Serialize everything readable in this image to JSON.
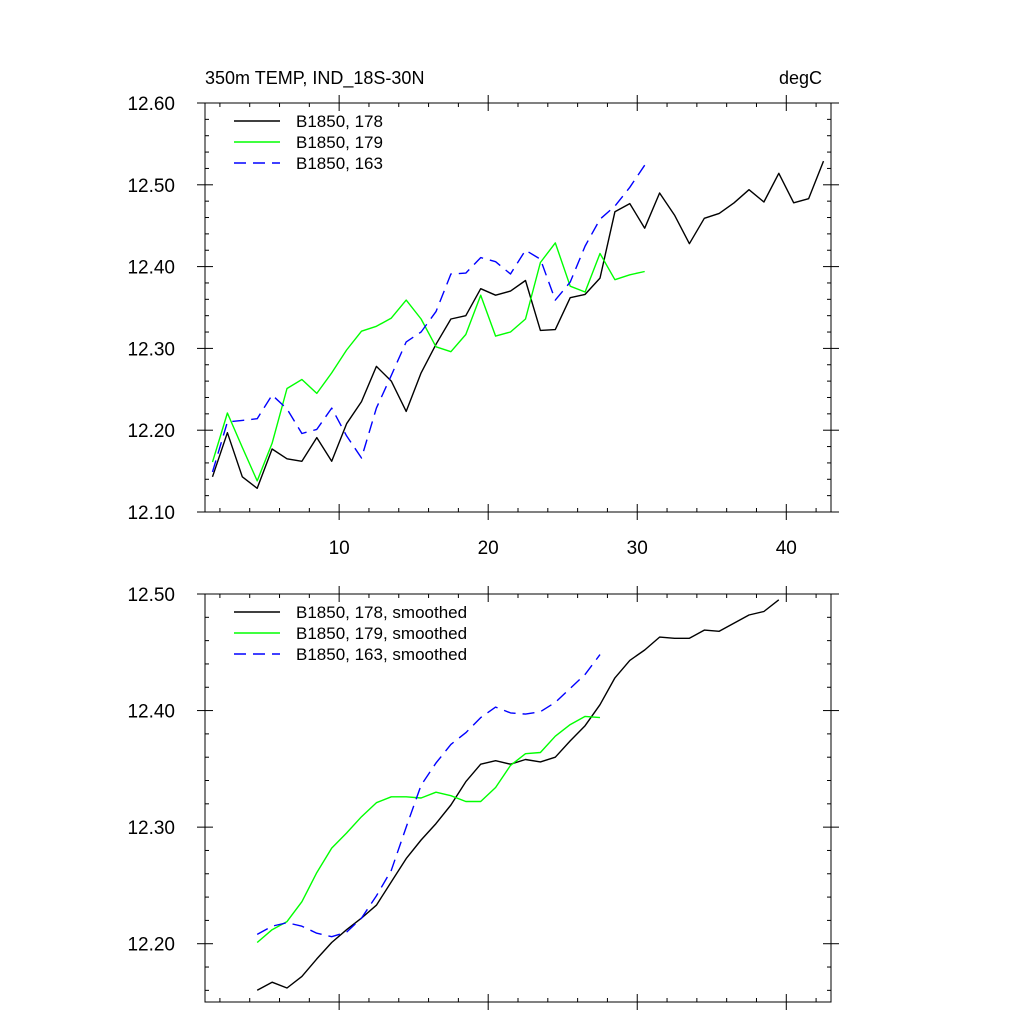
{
  "header": {
    "title": "350m TEMP, IND_18S-30N",
    "units": "degC"
  },
  "chart_data": [
    {
      "type": "line",
      "title": "350m TEMP, IND_18S-30N",
      "units": "degC",
      "xlim": [
        1,
        43
      ],
      "ylim": [
        12.1,
        12.6
      ],
      "x_ticks": [
        10,
        20,
        30,
        40
      ],
      "x_tick_labels": [
        "10",
        "20",
        "30",
        "40"
      ],
      "y_ticks": [
        12.1,
        12.2,
        12.3,
        12.4,
        12.5,
        12.6
      ],
      "y_tick_labels": [
        "12.10",
        "12.20",
        "12.30",
        "12.40",
        "12.50",
        "12.60"
      ],
      "legend_position": "top-left",
      "series": [
        {
          "name": "B1850, 178",
          "color": "#000000",
          "dash": "solid",
          "x": [
            1.5,
            2.5,
            3.5,
            4.5,
            5.5,
            6.5,
            7.5,
            8.5,
            9.5,
            10.5,
            11.5,
            12.5,
            13.5,
            14.5,
            15.5,
            16.5,
            17.5,
            18.5,
            19.5,
            20.5,
            21.5,
            22.5,
            23.5,
            24.5,
            25.5,
            26.5,
            27.5,
            28.5,
            29.5,
            30.5,
            31.5,
            32.5,
            33.5,
            34.5,
            35.5,
            36.5,
            37.5,
            38.5,
            39.5,
            40.5,
            41.5,
            42.5
          ],
          "y": [
            12.143,
            12.197,
            12.143,
            12.129,
            12.177,
            12.165,
            12.162,
            12.191,
            12.162,
            12.208,
            12.235,
            12.278,
            12.26,
            12.223,
            12.27,
            12.305,
            12.336,
            12.34,
            12.373,
            12.365,
            12.37,
            12.383,
            12.322,
            12.323,
            12.362,
            12.366,
            12.386,
            12.467,
            12.477,
            12.447,
            12.49,
            12.463,
            12.428,
            12.459,
            12.465,
            12.478,
            12.494,
            12.479,
            12.514,
            12.478,
            12.483,
            12.529
          ]
        },
        {
          "name": "B1850, 179",
          "color": "#00ff00",
          "dash": "solid",
          "x": [
            1.5,
            2.5,
            3.5,
            4.5,
            5.5,
            6.5,
            7.5,
            8.5,
            9.5,
            10.5,
            11.5,
            12.5,
            13.5,
            14.5,
            15.5,
            16.5,
            17.5,
            18.5,
            19.5,
            20.5,
            21.5,
            22.5,
            23.5,
            24.5,
            25.5,
            26.5,
            27.5,
            28.5,
            29.5,
            30.5
          ],
          "y": [
            12.161,
            12.221,
            12.179,
            12.138,
            12.184,
            12.251,
            12.262,
            12.245,
            12.27,
            12.298,
            12.321,
            12.327,
            12.337,
            12.359,
            12.336,
            12.302,
            12.296,
            12.317,
            12.365,
            12.315,
            12.32,
            12.336,
            12.405,
            12.429,
            12.376,
            12.369,
            12.416,
            12.384,
            12.39,
            12.394
          ]
        },
        {
          "name": "B1850, 163",
          "color": "#0000ff",
          "dash": "dashed",
          "x": [
            1.5,
            2.5,
            3.5,
            4.5,
            5.5,
            6.5,
            7.5,
            8.5,
            9.5,
            10.5,
            11.5,
            12.5,
            13.5,
            14.5,
            15.5,
            16.5,
            17.5,
            18.5,
            19.5,
            20.5,
            21.5,
            22.5,
            23.5,
            24.5,
            25.5,
            26.5,
            27.5,
            28.5,
            29.5,
            30.5
          ],
          "y": [
            12.149,
            12.21,
            12.212,
            12.214,
            12.243,
            12.226,
            12.196,
            12.201,
            12.227,
            12.193,
            12.166,
            12.227,
            12.267,
            12.308,
            12.32,
            12.345,
            12.391,
            12.392,
            12.411,
            12.406,
            12.391,
            12.42,
            12.409,
            12.359,
            12.381,
            12.425,
            12.458,
            12.474,
            12.497,
            12.524
          ]
        }
      ]
    },
    {
      "type": "line",
      "xlim": [
        1,
        43
      ],
      "ylim": [
        12.15,
        12.5
      ],
      "x_ticks": [
        10,
        20,
        30,
        40
      ],
      "x_tick_labels": [],
      "y_ticks": [
        12.2,
        12.3,
        12.4,
        12.5
      ],
      "y_tick_labels": [
        "12.20",
        "12.30",
        "12.40",
        "12.50"
      ],
      "legend_position": "top-left",
      "series": [
        {
          "name": "B1850, 178, smoothed",
          "color": "#000000",
          "dash": "solid",
          "x": [
            4.5,
            5.5,
            6.5,
            7.5,
            8.5,
            9.5,
            10.5,
            11.5,
            12.5,
            13.5,
            14.5,
            15.5,
            16.5,
            17.5,
            18.5,
            19.5,
            20.5,
            21.5,
            22.5,
            23.5,
            24.5,
            25.5,
            26.5,
            27.5,
            28.5,
            29.5,
            30.5,
            31.5,
            32.5,
            33.5,
            34.5,
            35.5,
            36.5,
            37.5,
            38.5,
            39.5
          ],
          "y": [
            12.16,
            12.167,
            12.162,
            12.172,
            12.187,
            12.201,
            12.212,
            12.222,
            12.233,
            12.253,
            12.273,
            12.289,
            12.303,
            12.319,
            12.339,
            12.354,
            12.357,
            12.354,
            12.358,
            12.356,
            12.36,
            12.374,
            12.387,
            12.405,
            12.428,
            12.443,
            12.452,
            12.463,
            12.462,
            12.462,
            12.469,
            12.468,
            12.475,
            12.482,
            12.485,
            12.495
          ]
        },
        {
          "name": "B1850, 179, smoothed",
          "color": "#00ff00",
          "dash": "solid",
          "x": [
            4.5,
            5.5,
            6.5,
            7.5,
            8.5,
            9.5,
            10.5,
            11.5,
            12.5,
            13.5,
            14.5,
            15.5,
            16.5,
            17.5,
            18.5,
            19.5,
            20.5,
            21.5,
            22.5,
            23.5,
            24.5,
            25.5,
            26.5,
            27.5
          ],
          "y": [
            12.201,
            12.212,
            12.219,
            12.236,
            12.261,
            12.282,
            12.295,
            12.309,
            12.321,
            12.326,
            12.326,
            12.325,
            12.33,
            12.327,
            12.322,
            12.322,
            12.334,
            12.353,
            12.363,
            12.364,
            12.378,
            12.388,
            12.395,
            12.394
          ]
        },
        {
          "name": "B1850, 163, smoothed",
          "color": "#0000ff",
          "dash": "dashed",
          "x": [
            4.5,
            5.5,
            6.5,
            7.5,
            8.5,
            9.5,
            10.5,
            11.5,
            12.5,
            13.5,
            14.5,
            15.5,
            16.5,
            17.5,
            18.5,
            19.5,
            20.5,
            21.5,
            22.5,
            23.5,
            24.5,
            25.5,
            26.5,
            27.5
          ],
          "y": [
            12.208,
            12.215,
            12.218,
            12.215,
            12.209,
            12.206,
            12.21,
            12.222,
            12.241,
            12.263,
            12.3,
            12.336,
            12.355,
            12.371,
            12.381,
            12.394,
            12.403,
            12.398,
            12.397,
            12.399,
            12.407,
            12.419,
            12.431,
            12.448
          ]
        }
      ]
    }
  ]
}
